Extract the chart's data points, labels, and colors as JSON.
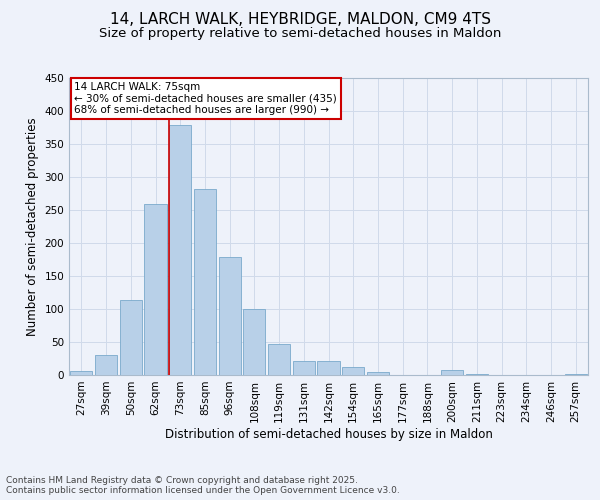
{
  "title": "14, LARCH WALK, HEYBRIDGE, MALDON, CM9 4TS",
  "subtitle": "Size of property relative to semi-detached houses in Maldon",
  "xlabel": "Distribution of semi-detached houses by size in Maldon",
  "ylabel": "Number of semi-detached properties",
  "bins": [
    "27sqm",
    "39sqm",
    "50sqm",
    "62sqm",
    "73sqm",
    "85sqm",
    "96sqm",
    "108sqm",
    "119sqm",
    "131sqm",
    "142sqm",
    "154sqm",
    "165sqm",
    "177sqm",
    "188sqm",
    "200sqm",
    "211sqm",
    "223sqm",
    "234sqm",
    "246sqm",
    "257sqm"
  ],
  "values": [
    6,
    31,
    113,
    258,
    378,
    281,
    179,
    100,
    47,
    21,
    21,
    12,
    5,
    0,
    0,
    7,
    2,
    0,
    0,
    0,
    2
  ],
  "bar_color": "#b8d0e8",
  "bar_edge_color": "#7aaacc",
  "grid_color": "#d0daea",
  "background_color": "#eef2fa",
  "property_line_index": 4,
  "property_line_color": "#cc0000",
  "annotation_text": "14 LARCH WALK: 75sqm\n← 30% of semi-detached houses are smaller (435)\n68% of semi-detached houses are larger (990) →",
  "annotation_box_edge_color": "#cc0000",
  "ylim": [
    0,
    450
  ],
  "yticks": [
    0,
    50,
    100,
    150,
    200,
    250,
    300,
    350,
    400,
    450
  ],
  "footer_text": "Contains HM Land Registry data © Crown copyright and database right 2025.\nContains public sector information licensed under the Open Government Licence v3.0.",
  "title_fontsize": 11,
  "subtitle_fontsize": 9.5,
  "ylabel_fontsize": 8.5,
  "xlabel_fontsize": 8.5,
  "tick_fontsize": 7.5,
  "annotation_fontsize": 7.5,
  "footer_fontsize": 6.5
}
